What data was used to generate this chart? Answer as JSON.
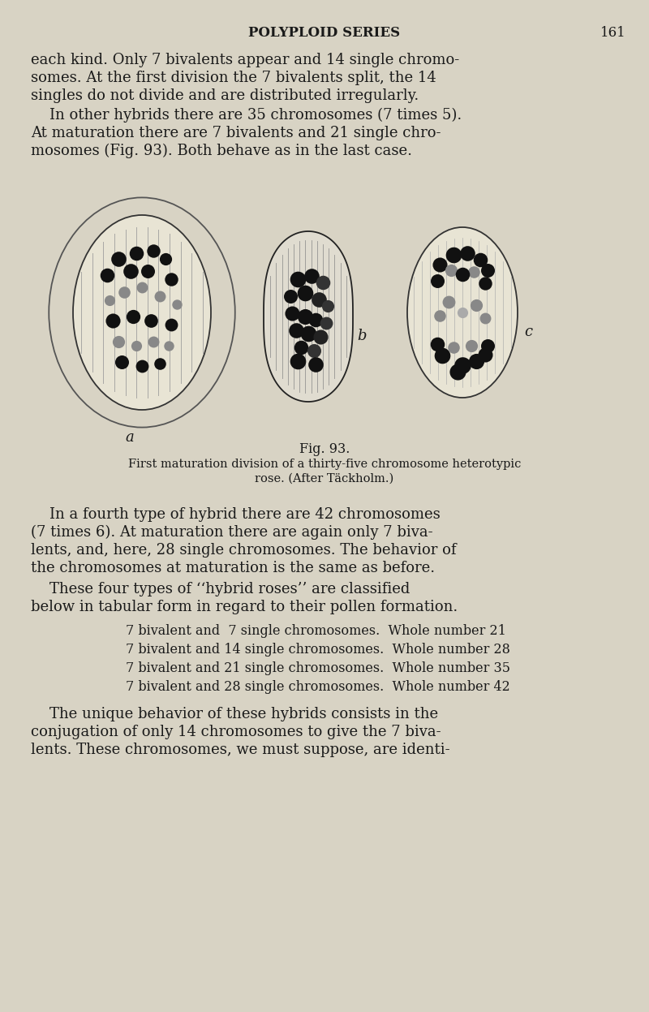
{
  "bg_color": "#d8d3c4",
  "text_color": "#1a1a1a",
  "page_width": 8.0,
  "page_height": 12.47,
  "dpi": 100,
  "header_title": "POLYPLOID SERIES",
  "header_page": "161",
  "p1_lines": [
    "each kind. Only 7 bivalents appear and 14 single chromo-",
    "somes. At the first division the 7 bivalents split, the 14",
    "singles do not divide and are distributed irregularly."
  ],
  "p2_lines": [
    "    In other hybrids there are 35 chromosomes (7 times 5).",
    "At maturation there are 7 bivalents and 21 single chro-",
    "mosomes (Fig. 93). Both behave as in the last case."
  ],
  "fig_label": "Fig. 93.",
  "fig_caption_line1": "First maturation division of a thirty-five chromosome heterotypic",
  "fig_caption_line2": "rose. (After Täckholm.)",
  "p3_lines": [
    "    In a fourth type of hybrid there are 42 chromosomes",
    "(7 times 6). At maturation there are again only 7 biva-",
    "lents, and, here, 28 single chromosomes. The behavior of",
    "the chromosomes at maturation is the same as before."
  ],
  "p4_lines": [
    "    These four types of ‘‘hybrid roses’’ are classified",
    "below in tabular form in regard to their pollen formation."
  ],
  "table_lines": [
    "7 bivalent and  7 single chromosomes.  Whole number 21",
    "7 bivalent and 14 single chromosomes.  Whole number 28",
    "7 bivalent and 21 single chromosomes.  Whole number 35",
    "7 bivalent and 28 single chromosomes.  Whole number 42"
  ],
  "p5_lines": [
    "    The unique behavior of these hybrids consists in the",
    "conjugation of only 14 chromosomes to give the 7 biva-",
    "lents. These chromosomes, we must suppose, are identi-"
  ]
}
